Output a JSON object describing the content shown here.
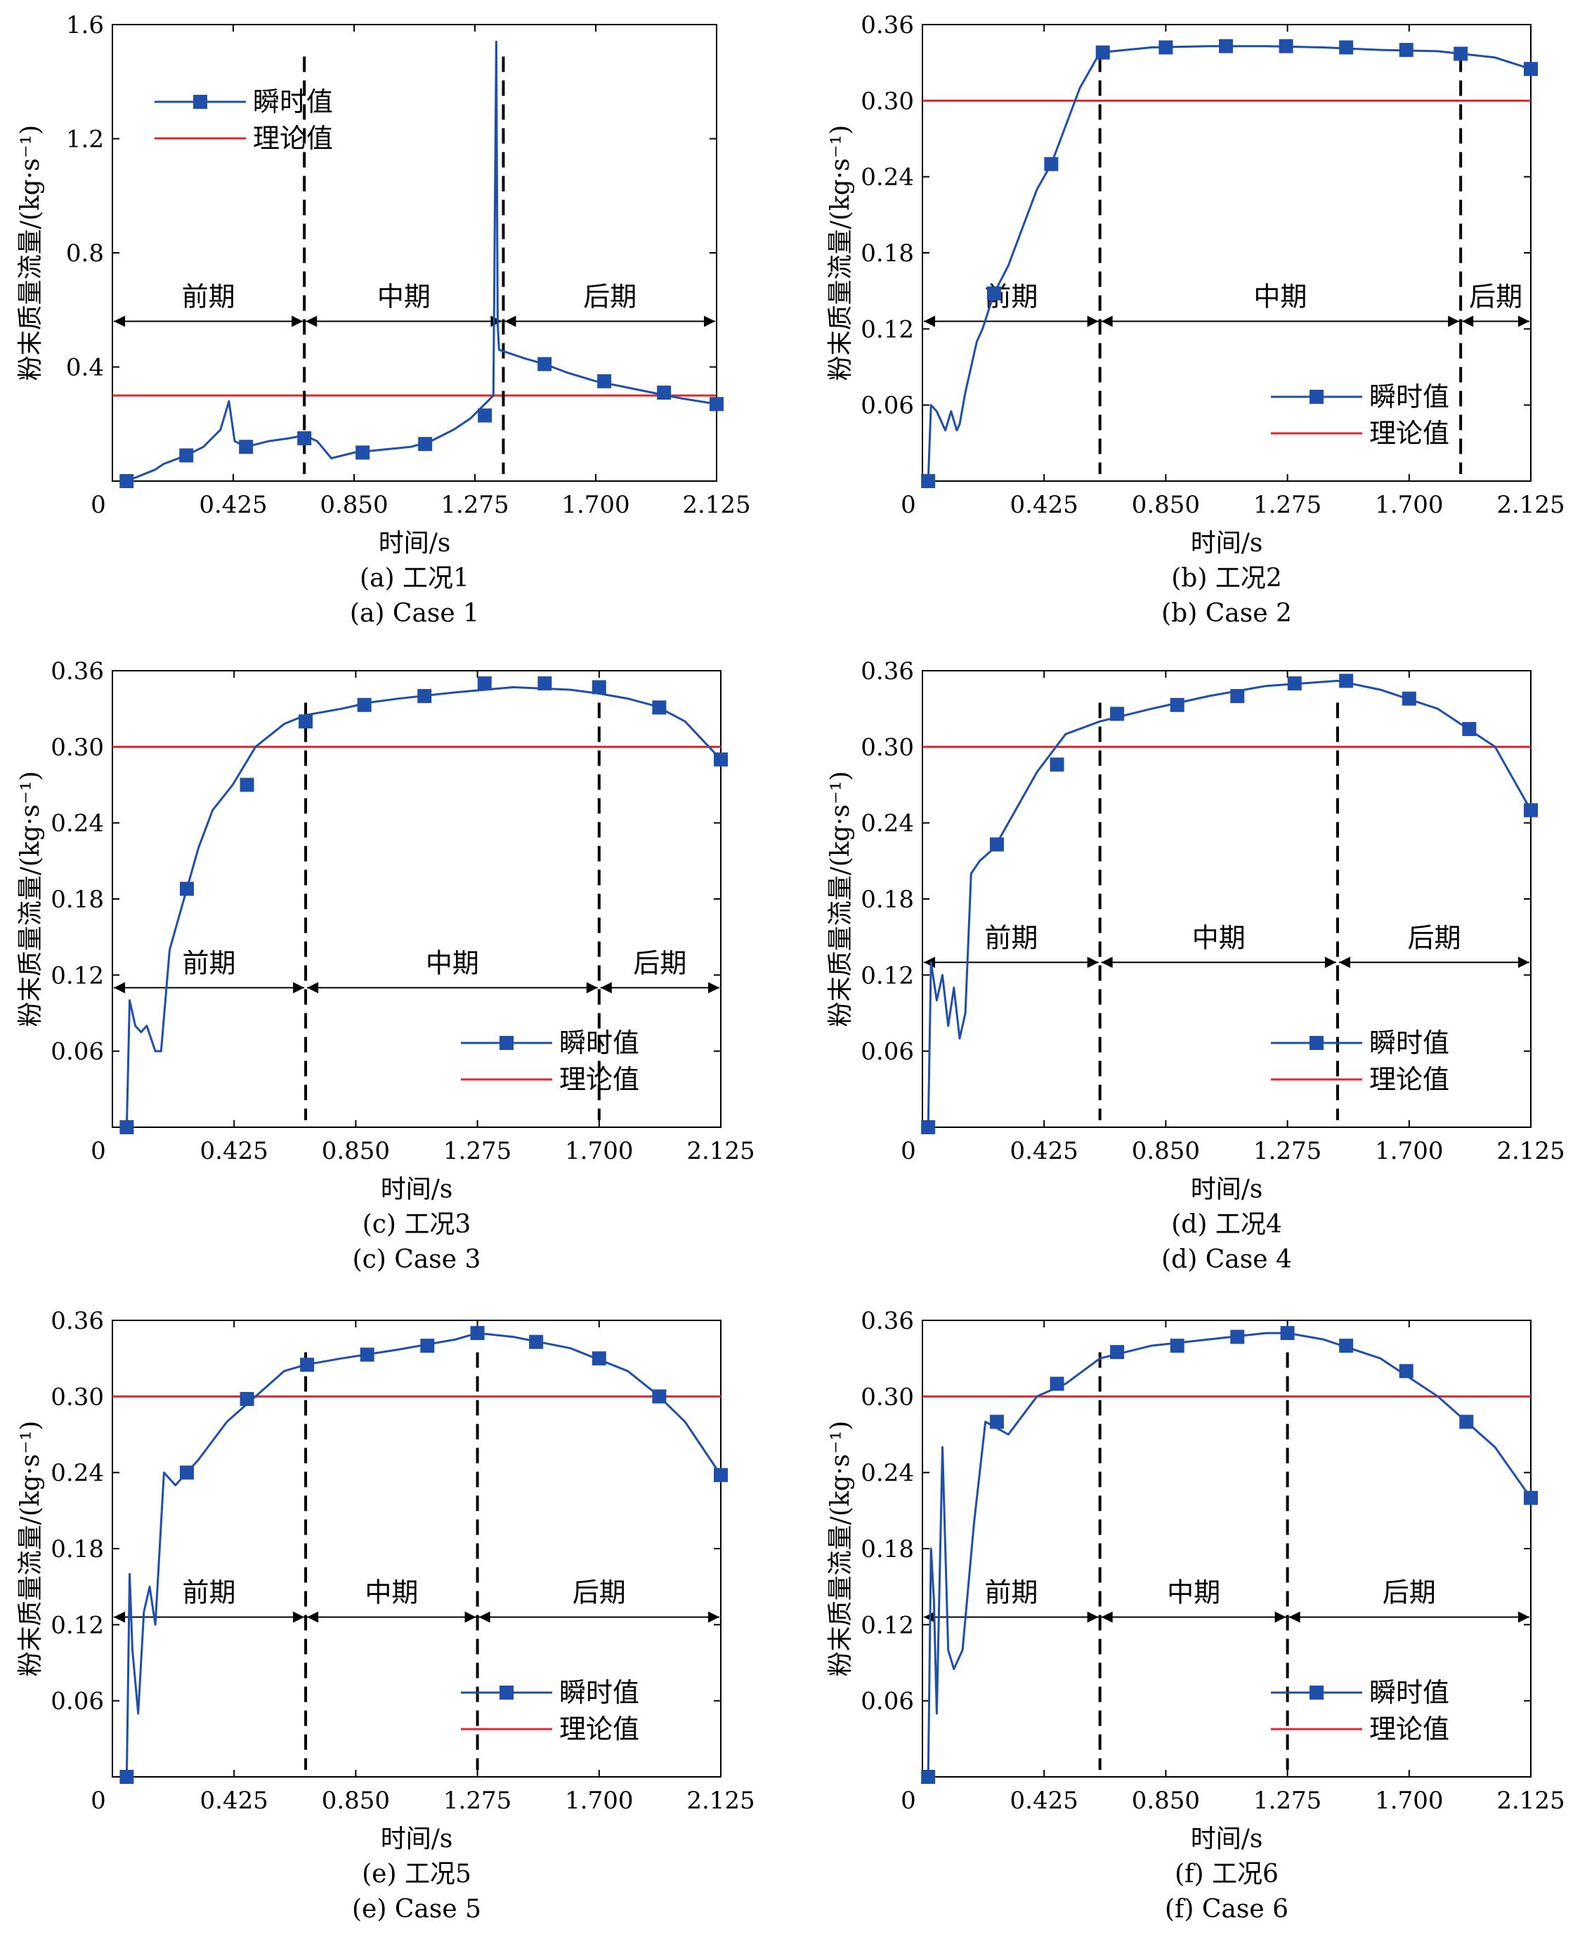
{
  "legend": {
    "instant": "瞬时值",
    "theory": "理论值"
  },
  "xlabel": "时间/s",
  "ylabel": "粉末质量流量/(kg·s⁻¹)",
  "x_ticks": [
    "0",
    "0.425",
    "0.850",
    "1.275",
    "1.700",
    "2.125"
  ],
  "colors": {
    "instant": "#1f4fa8",
    "theory": "#e3262b",
    "axis": "#000000"
  },
  "chart_data": [
    {
      "type": "line",
      "caption_cn": "(a) 工况1",
      "caption_en": "(a) Case 1",
      "ylim": [
        0,
        1.6
      ],
      "y_ticks": [
        "0.4",
        "0.8",
        "1.2",
        "1.6"
      ],
      "xlim": [
        0,
        2.125
      ],
      "theory_value": 0.3,
      "phases": [
        {
          "label": "前期",
          "from": 0.0,
          "to": 0.675
        },
        {
          "label": "中期",
          "from": 0.675,
          "to": 1.375
        },
        {
          "label": "后期",
          "from": 1.375,
          "to": 2.125
        }
      ],
      "arrow_y": 0.56,
      "series": [
        {
          "name": "瞬时值",
          "values": [
            [
              0.05,
              0
            ],
            [
              0.15,
              0.04
            ],
            [
              0.18,
              0.06
            ],
            [
              0.26,
              0.09
            ],
            [
              0.32,
              0.12
            ],
            [
              0.38,
              0.18
            ],
            [
              0.41,
              0.28
            ],
            [
              0.43,
              0.14
            ],
            [
              0.47,
              0.12
            ],
            [
              0.55,
              0.14
            ],
            [
              0.62,
              0.15
            ],
            [
              0.675,
              0.16
            ],
            [
              0.72,
              0.14
            ],
            [
              0.77,
              0.08
            ],
            [
              0.85,
              0.1
            ],
            [
              0.95,
              0.11
            ],
            [
              1.05,
              0.12
            ],
            [
              1.12,
              0.14
            ],
            [
              1.2,
              0.18
            ],
            [
              1.26,
              0.22
            ],
            [
              1.31,
              0.27
            ],
            [
              1.34,
              0.3
            ],
            [
              1.35,
              1.54
            ],
            [
              1.355,
              0.55
            ],
            [
              1.36,
              0.46
            ],
            [
              1.45,
              0.43
            ],
            [
              1.52,
              0.41
            ],
            [
              1.6,
              0.38
            ],
            [
              1.7,
              0.35
            ],
            [
              1.8,
              0.33
            ],
            [
              1.9,
              0.31
            ],
            [
              2.0,
              0.29
            ],
            [
              2.125,
              0.27
            ]
          ]
        }
      ],
      "markers": [
        [
          0.05,
          0
        ],
        [
          0.26,
          0.09
        ],
        [
          0.47,
          0.12
        ],
        [
          0.675,
          0.15
        ],
        [
          0.88,
          0.1
        ],
        [
          1.1,
          0.13
        ],
        [
          1.31,
          0.23
        ],
        [
          1.52,
          0.41
        ],
        [
          1.73,
          0.35
        ],
        [
          1.94,
          0.31
        ],
        [
          2.125,
          0.27
        ]
      ]
    },
    {
      "type": "line",
      "caption_cn": "(b) 工况2",
      "caption_en": "(b) Case 2",
      "ylim": [
        0,
        0.36
      ],
      "y_ticks": [
        "0.06",
        "0.12",
        "0.18",
        "0.24",
        "0.30",
        "0.36"
      ],
      "xlim": [
        0,
        2.125
      ],
      "theory_value": 0.3,
      "phases": [
        {
          "label": "前期",
          "from": 0.0,
          "to": 0.62
        },
        {
          "label": "中期",
          "from": 0.62,
          "to": 1.88
        },
        {
          "label": "后期",
          "from": 1.88,
          "to": 2.125
        }
      ],
      "arrow_y": 0.126,
      "series": [
        {
          "name": "瞬时值",
          "values": [
            [
              0.02,
              0
            ],
            [
              0.03,
              0.06
            ],
            [
              0.05,
              0.055
            ],
            [
              0.08,
              0.04
            ],
            [
              0.1,
              0.055
            ],
            [
              0.12,
              0.04
            ],
            [
              0.13,
              0.045
            ],
            [
              0.15,
              0.07
            ],
            [
              0.17,
              0.09
            ],
            [
              0.19,
              0.11
            ],
            [
              0.21,
              0.12
            ],
            [
              0.25,
              0.148
            ],
            [
              0.3,
              0.17
            ],
            [
              0.35,
              0.2
            ],
            [
              0.4,
              0.23
            ],
            [
              0.45,
              0.25
            ],
            [
              0.5,
              0.28
            ],
            [
              0.55,
              0.31
            ],
            [
              0.6,
              0.33
            ],
            [
              0.62,
              0.338
            ],
            [
              0.8,
              0.342
            ],
            [
              1.0,
              0.343
            ],
            [
              1.2,
              0.343
            ],
            [
              1.4,
              0.342
            ],
            [
              1.6,
              0.34
            ],
            [
              1.8,
              0.339
            ],
            [
              1.88,
              0.337
            ],
            [
              2.0,
              0.334
            ],
            [
              2.125,
              0.325
            ]
          ]
        }
      ],
      "markers": [
        [
          0.02,
          0
        ],
        [
          0.25,
          0.148
        ],
        [
          0.45,
          0.25
        ],
        [
          0.63,
          0.338
        ],
        [
          0.85,
          0.342
        ],
        [
          1.06,
          0.343
        ],
        [
          1.27,
          0.343
        ],
        [
          1.48,
          0.342
        ],
        [
          1.69,
          0.34
        ],
        [
          1.88,
          0.337
        ],
        [
          2.125,
          0.325
        ]
      ]
    },
    {
      "type": "line",
      "caption_cn": "(c) 工况3",
      "caption_en": "(c) Case 3",
      "ylim": [
        0,
        0.36
      ],
      "y_ticks": [
        "0.06",
        "0.12",
        "0.18",
        "0.24",
        "0.30",
        "0.36"
      ],
      "xlim": [
        0,
        2.125
      ],
      "theory_value": 0.3,
      "phases": [
        {
          "label": "前期",
          "from": 0.0,
          "to": 0.675
        },
        {
          "label": "中期",
          "from": 0.675,
          "to": 1.7
        },
        {
          "label": "后期",
          "from": 1.7,
          "to": 2.125
        }
      ],
      "arrow_y": 0.11,
      "series": [
        {
          "name": "瞬时值",
          "values": [
            [
              0.05,
              0
            ],
            [
              0.06,
              0.1
            ],
            [
              0.08,
              0.08
            ],
            [
              0.1,
              0.075
            ],
            [
              0.12,
              0.08
            ],
            [
              0.15,
              0.06
            ],
            [
              0.17,
              0.06
            ],
            [
              0.2,
              0.14
            ],
            [
              0.25,
              0.18
            ],
            [
              0.3,
              0.22
            ],
            [
              0.35,
              0.25
            ],
            [
              0.42,
              0.27
            ],
            [
              0.5,
              0.3
            ],
            [
              0.6,
              0.318
            ],
            [
              0.675,
              0.325
            ],
            [
              0.8,
              0.33
            ],
            [
              0.9,
              0.335
            ],
            [
              1.0,
              0.338
            ],
            [
              1.2,
              0.343
            ],
            [
              1.4,
              0.347
            ],
            [
              1.6,
              0.345
            ],
            [
              1.7,
              0.342
            ],
            [
              1.8,
              0.338
            ],
            [
              1.9,
              0.332
            ],
            [
              2.0,
              0.32
            ],
            [
              2.125,
              0.29
            ]
          ]
        }
      ],
      "markers": [
        [
          0.05,
          0
        ],
        [
          0.26,
          0.188
        ],
        [
          0.47,
          0.27
        ],
        [
          0.675,
          0.32
        ],
        [
          0.88,
          0.333
        ],
        [
          1.09,
          0.34
        ],
        [
          1.3,
          0.35
        ],
        [
          1.51,
          0.35
        ],
        [
          1.7,
          0.347
        ],
        [
          1.91,
          0.331
        ],
        [
          2.125,
          0.29
        ]
      ]
    },
    {
      "type": "line",
      "caption_cn": "(d) 工况4",
      "caption_en": "(d) Case 4",
      "ylim": [
        0,
        0.36
      ],
      "y_ticks": [
        "0.06",
        "0.12",
        "0.18",
        "0.24",
        "0.30",
        "0.36"
      ],
      "xlim": [
        0,
        2.125
      ],
      "theory_value": 0.3,
      "phases": [
        {
          "label": "前期",
          "from": 0.0,
          "to": 0.62
        },
        {
          "label": "中期",
          "from": 0.62,
          "to": 1.45
        },
        {
          "label": "后期",
          "from": 1.45,
          "to": 2.125
        }
      ],
      "arrow_y": 0.13,
      "series": [
        {
          "name": "瞬时值",
          "values": [
            [
              0.02,
              0
            ],
            [
              0.03,
              0.13
            ],
            [
              0.05,
              0.1
            ],
            [
              0.07,
              0.12
            ],
            [
              0.09,
              0.08
            ],
            [
              0.11,
              0.11
            ],
            [
              0.13,
              0.07
            ],
            [
              0.15,
              0.09
            ],
            [
              0.17,
              0.2
            ],
            [
              0.2,
              0.21
            ],
            [
              0.25,
              0.22
            ],
            [
              0.3,
              0.24
            ],
            [
              0.4,
              0.28
            ],
            [
              0.5,
              0.31
            ],
            [
              0.62,
              0.32
            ],
            [
              0.8,
              0.33
            ],
            [
              1.0,
              0.34
            ],
            [
              1.2,
              0.348
            ],
            [
              1.45,
              0.352
            ],
            [
              1.6,
              0.345
            ],
            [
              1.8,
              0.33
            ],
            [
              1.9,
              0.315
            ],
            [
              2.0,
              0.3
            ],
            [
              2.125,
              0.25
            ]
          ]
        }
      ],
      "markers": [
        [
          0.02,
          0
        ],
        [
          0.26,
          0.223
        ],
        [
          0.47,
          0.286
        ],
        [
          0.68,
          0.326
        ],
        [
          0.89,
          0.333
        ],
        [
          1.1,
          0.34
        ],
        [
          1.3,
          0.35
        ],
        [
          1.48,
          0.352
        ],
        [
          1.7,
          0.338
        ],
        [
          1.91,
          0.314
        ],
        [
          2.125,
          0.25
        ]
      ]
    },
    {
      "type": "line",
      "caption_cn": "(e) 工况5",
      "caption_en": "(e) Case 5",
      "ylim": [
        0,
        0.36
      ],
      "y_ticks": [
        "0.06",
        "0.12",
        "0.18",
        "0.24",
        "0.30",
        "0.36"
      ],
      "xlim": [
        0,
        2.125
      ],
      "theory_value": 0.3,
      "phases": [
        {
          "label": "前期",
          "from": 0.0,
          "to": 0.675
        },
        {
          "label": "中期",
          "from": 0.675,
          "to": 1.275
        },
        {
          "label": "后期",
          "from": 1.275,
          "to": 2.125
        }
      ],
      "arrow_y": 0.126,
      "series": [
        {
          "name": "瞬时值",
          "values": [
            [
              0.05,
              0
            ],
            [
              0.06,
              0.16
            ],
            [
              0.07,
              0.1
            ],
            [
              0.09,
              0.05
            ],
            [
              0.11,
              0.13
            ],
            [
              0.13,
              0.15
            ],
            [
              0.15,
              0.12
            ],
            [
              0.18,
              0.24
            ],
            [
              0.22,
              0.23
            ],
            [
              0.3,
              0.25
            ],
            [
              0.4,
              0.28
            ],
            [
              0.5,
              0.3
            ],
            [
              0.6,
              0.32
            ],
            [
              0.675,
              0.325
            ],
            [
              0.8,
              0.33
            ],
            [
              1.0,
              0.337
            ],
            [
              1.2,
              0.345
            ],
            [
              1.275,
              0.35
            ],
            [
              1.4,
              0.347
            ],
            [
              1.6,
              0.338
            ],
            [
              1.8,
              0.32
            ],
            [
              1.9,
              0.302
            ],
            [
              2.0,
              0.28
            ],
            [
              2.125,
              0.238
            ]
          ]
        }
      ],
      "markers": [
        [
          0.05,
          0
        ],
        [
          0.26,
          0.24
        ],
        [
          0.47,
          0.298
        ],
        [
          0.68,
          0.325
        ],
        [
          0.89,
          0.333
        ],
        [
          1.1,
          0.34
        ],
        [
          1.275,
          0.35
        ],
        [
          1.48,
          0.343
        ],
        [
          1.7,
          0.33
        ],
        [
          1.91,
          0.3
        ],
        [
          2.125,
          0.238
        ]
      ]
    },
    {
      "type": "line",
      "caption_cn": "(f) 工况6",
      "caption_en": "(f) Case 6",
      "ylim": [
        0,
        0.36
      ],
      "y_ticks": [
        "0.06",
        "0.12",
        "0.18",
        "0.24",
        "0.30",
        "0.36"
      ],
      "xlim": [
        0,
        2.125
      ],
      "theory_value": 0.3,
      "phases": [
        {
          "label": "前期",
          "from": 0.0,
          "to": 0.62
        },
        {
          "label": "中期",
          "from": 0.62,
          "to": 1.275
        },
        {
          "label": "后期",
          "from": 1.275,
          "to": 2.125
        }
      ],
      "arrow_y": 0.126,
      "series": [
        {
          "name": "瞬时值",
          "values": [
            [
              0.02,
              0
            ],
            [
              0.03,
              0.18
            ],
            [
              0.04,
              0.14
            ],
            [
              0.05,
              0.05
            ],
            [
              0.07,
              0.26
            ],
            [
              0.09,
              0.1
            ],
            [
              0.11,
              0.085
            ],
            [
              0.14,
              0.1
            ],
            [
              0.18,
              0.2
            ],
            [
              0.22,
              0.28
            ],
            [
              0.3,
              0.27
            ],
            [
              0.4,
              0.3
            ],
            [
              0.5,
              0.31
            ],
            [
              0.62,
              0.33
            ],
            [
              0.8,
              0.34
            ],
            [
              1.0,
              0.345
            ],
            [
              1.2,
              0.35
            ],
            [
              1.275,
              0.35
            ],
            [
              1.4,
              0.345
            ],
            [
              1.6,
              0.33
            ],
            [
              1.8,
              0.3
            ],
            [
              1.9,
              0.28
            ],
            [
              2.0,
              0.26
            ],
            [
              2.125,
              0.22
            ]
          ]
        }
      ],
      "markers": [
        [
          0.02,
          0
        ],
        [
          0.26,
          0.28
        ],
        [
          0.47,
          0.31
        ],
        [
          0.68,
          0.335
        ],
        [
          0.89,
          0.34
        ],
        [
          1.1,
          0.347
        ],
        [
          1.275,
          0.35
        ],
        [
          1.48,
          0.34
        ],
        [
          1.69,
          0.32
        ],
        [
          1.9,
          0.28
        ],
        [
          2.125,
          0.22
        ]
      ]
    }
  ]
}
